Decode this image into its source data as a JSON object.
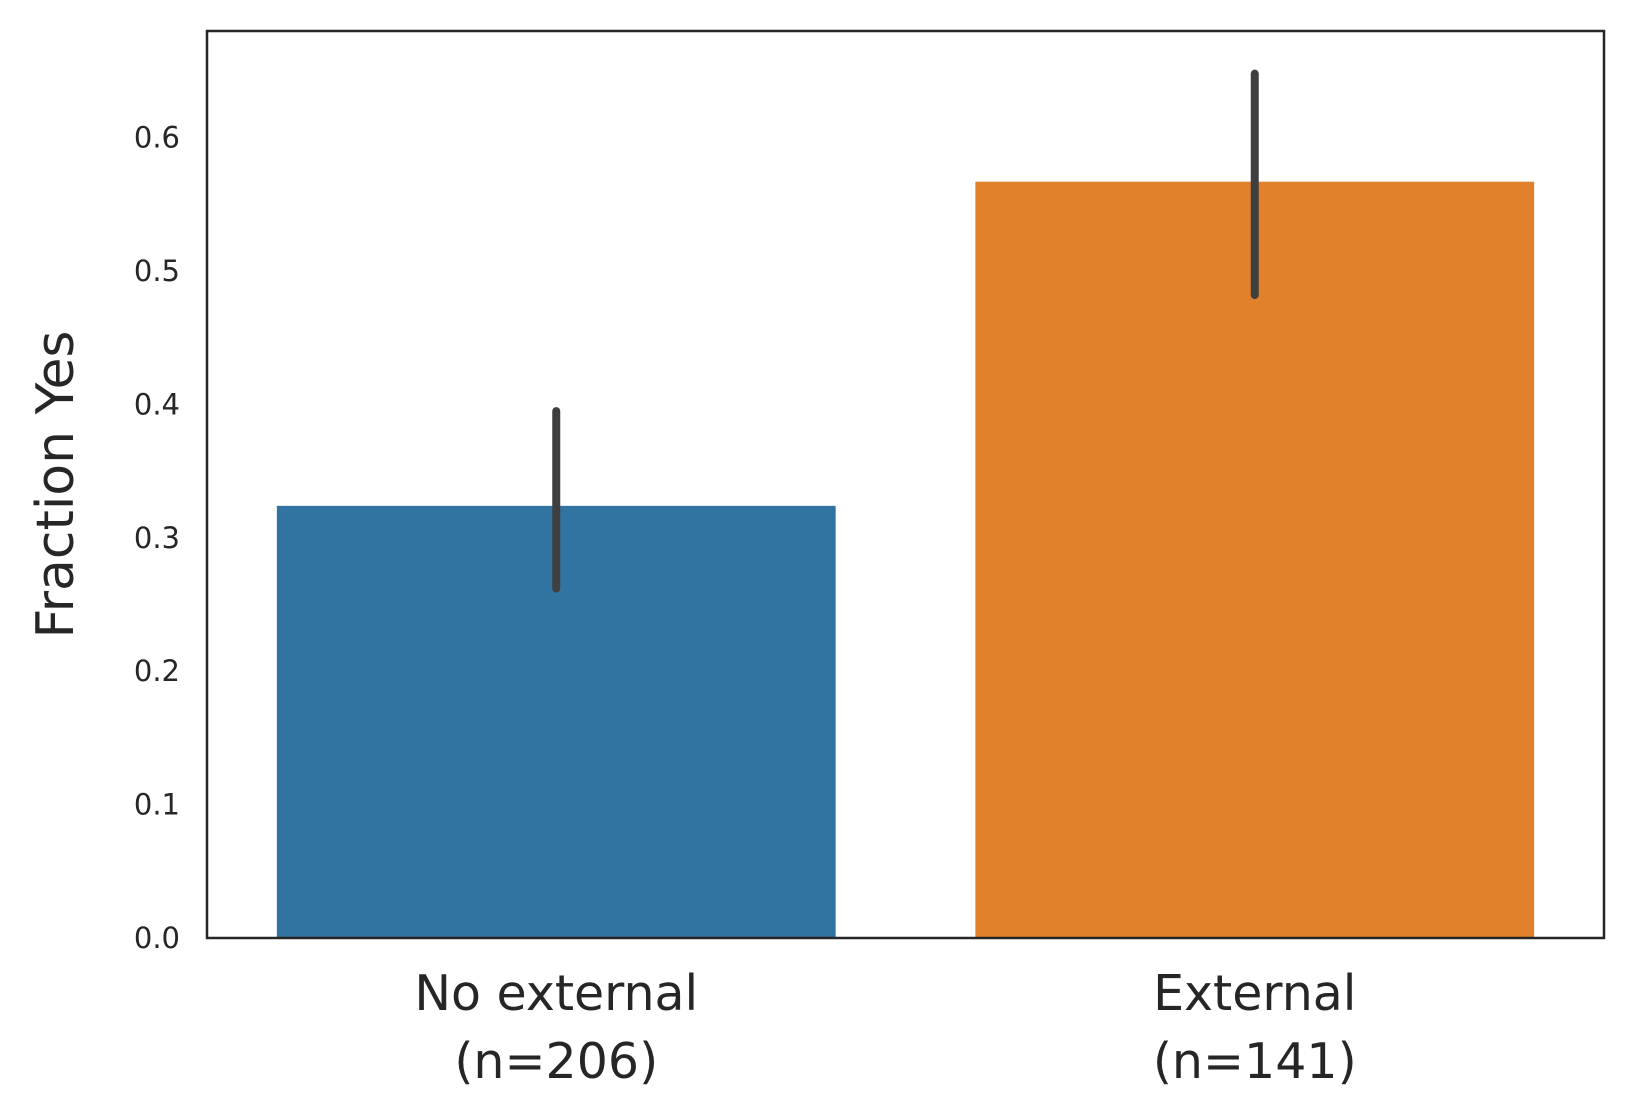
{
  "chart_data": {
    "type": "bar",
    "categories": [
      {
        "line1": "No external",
        "line2": "(n=206)"
      },
      {
        "line1": "External",
        "line2": "(n=141)"
      }
    ],
    "values": [
      0.324,
      0.567
    ],
    "error_bars": [
      {
        "low": 0.262,
        "high": 0.395
      },
      {
        "low": 0.482,
        "high": 0.648
      }
    ],
    "colors": [
      "#3274a1",
      "#e1812c"
    ],
    "error_color": "#3f3f3f",
    "frame_color": "#262626",
    "title": "",
    "xlabel": "",
    "ylabel": "Fraction Yes",
    "ylim": [
      0,
      0.68
    ],
    "yticks": [
      0.0,
      0.1,
      0.2,
      0.3,
      0.4,
      0.5,
      0.6
    ],
    "ytick_labels": [
      "0.0",
      "0.1",
      "0.2",
      "0.3",
      "0.4",
      "0.5",
      "0.6"
    ],
    "grid": false,
    "legend": "none"
  }
}
